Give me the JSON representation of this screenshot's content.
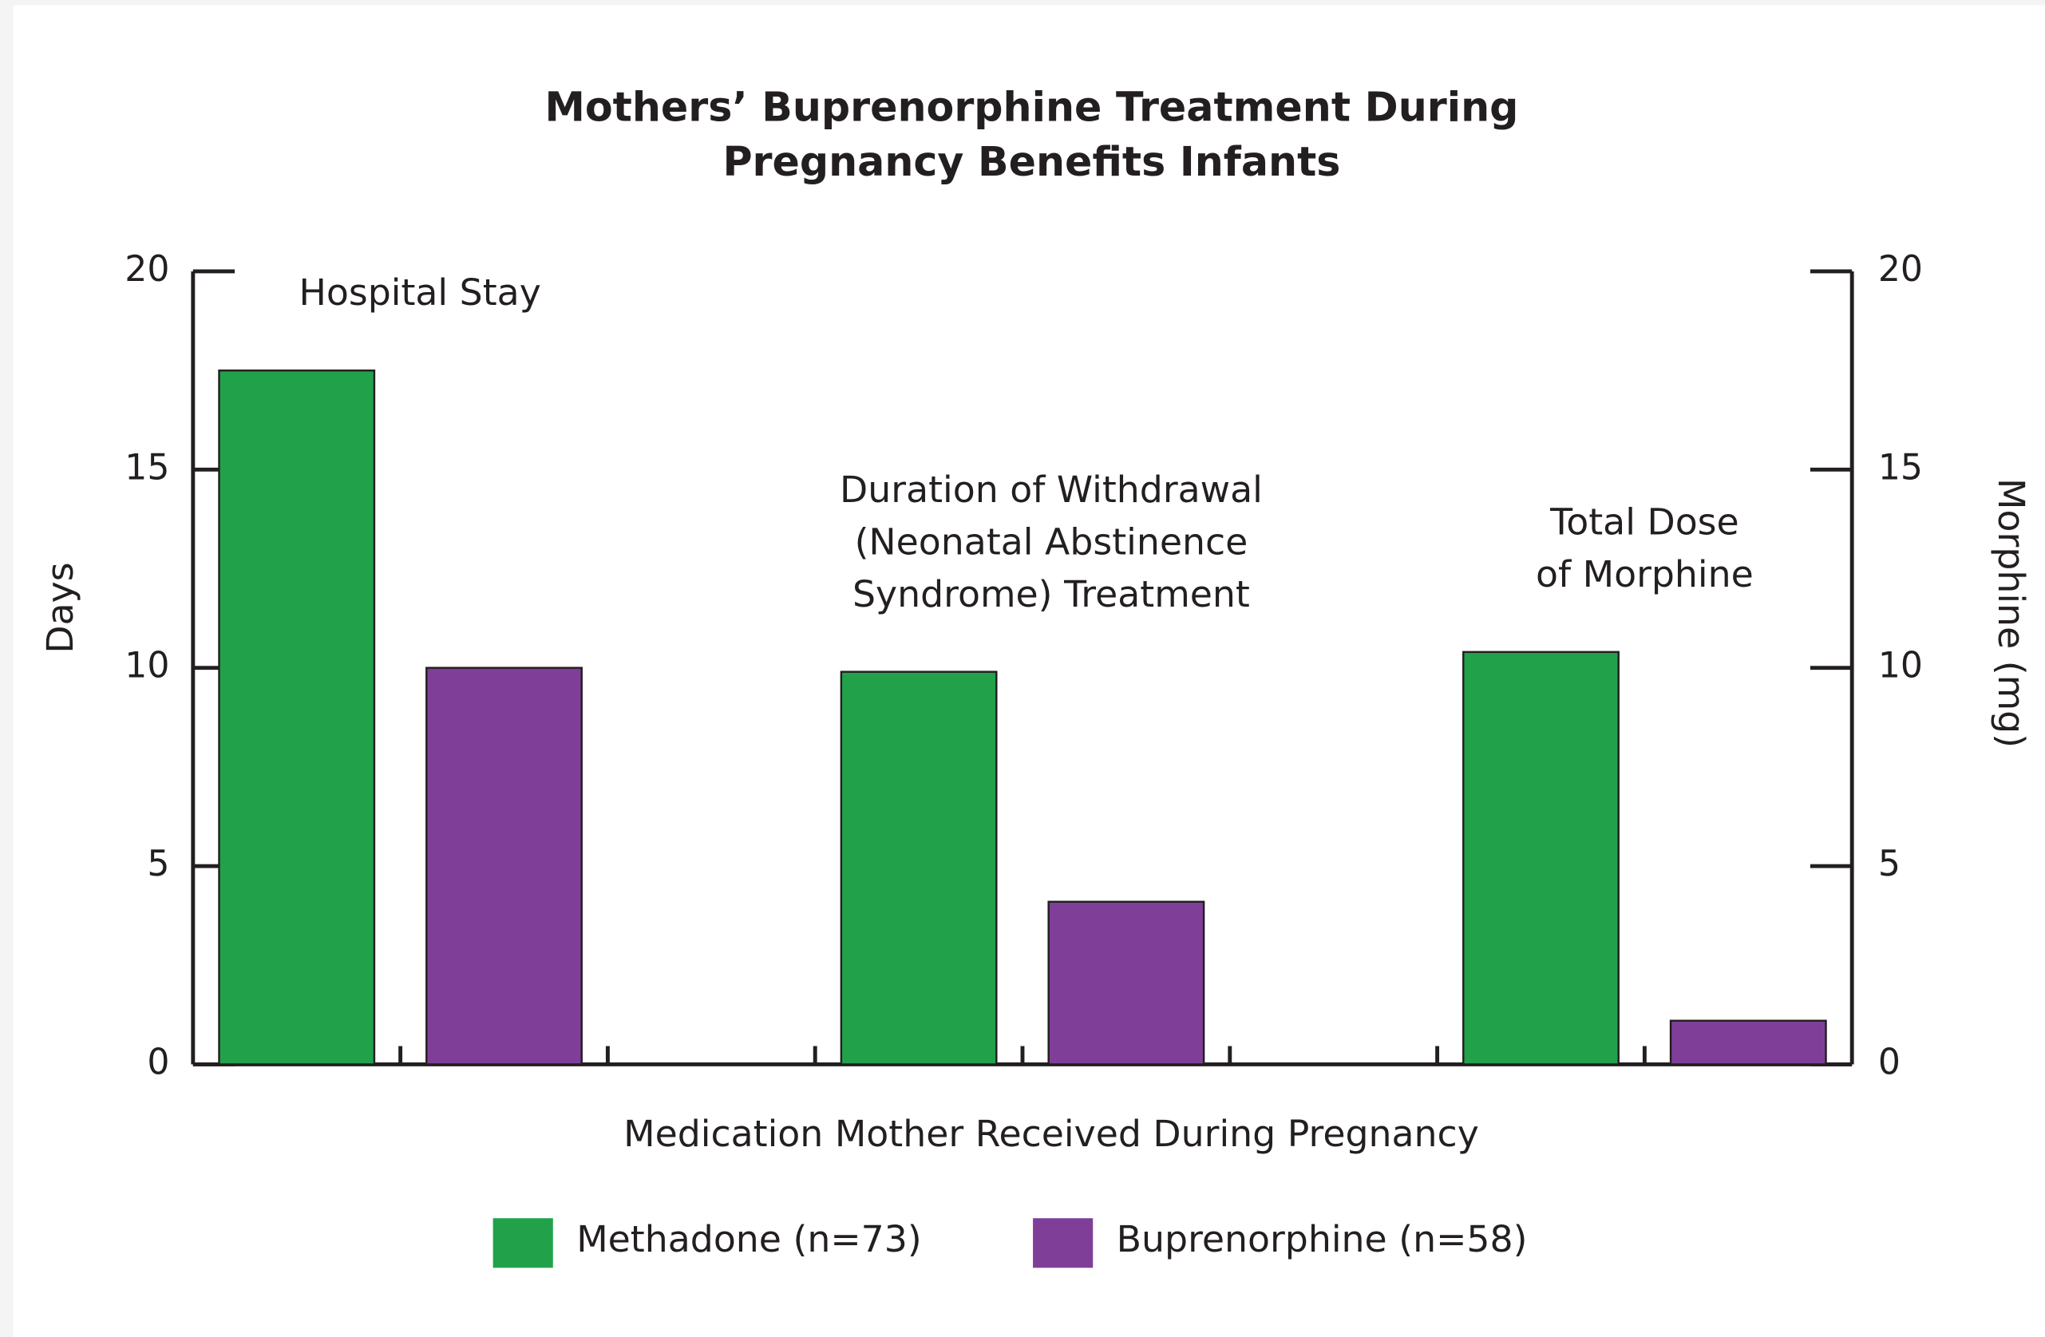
{
  "chart_data": {
    "type": "bar",
    "title": "Mothers’ Buprenorphine Treatment During\nPregnancy Benefits Infants",
    "categories": [
      "Hospital Stay",
      "Duration of Withdrawal\n(Neonatal Abstinence\nSyndrome) Treatment",
      "Total Dose\nof Morphine"
    ],
    "series": [
      {
        "name": "Methadone (n=73)",
        "color": "#21a24a",
        "values": [
          17.5,
          9.9,
          10.4
        ]
      },
      {
        "name": "Buprenorphine (n=58)",
        "color": "#7f3f98",
        "values": [
          10.0,
          4.1,
          1.1
        ]
      }
    ],
    "x_label": "Medication Mother Received During Pregnancy",
    "y_label": "Days",
    "y2_label": "Morphine (mg)",
    "ylim": [
      0,
      20
    ],
    "yticks": [
      0,
      5,
      10,
      15,
      20
    ],
    "y2lim": [
      0,
      20
    ],
    "y2ticks": [
      0,
      5,
      10,
      15,
      20
    ],
    "grid": false
  }
}
